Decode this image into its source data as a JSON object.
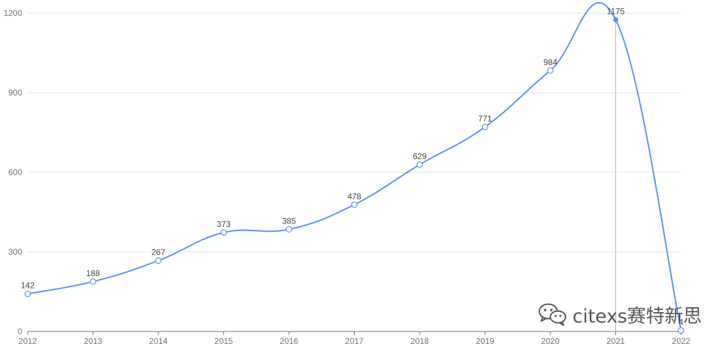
{
  "chart_data": {
    "type": "line",
    "categories": [
      "2012",
      "2013",
      "2014",
      "2015",
      "2016",
      "2017",
      "2018",
      "2019",
      "2020",
      "2021",
      "2022"
    ],
    "values": [
      142,
      188,
      267,
      373,
      385,
      478,
      629,
      771,
      984,
      1175,
      4
    ],
    "ylim": [
      0,
      1200
    ],
    "yticks": [
      0,
      300,
      600,
      900,
      1200
    ],
    "grid": true,
    "smooth": true,
    "highlighted_category": "2021",
    "title": "",
    "xlabel": "",
    "ylabel": ""
  },
  "colors": {
    "line": "#5b8ff9",
    "grid": "#e0e6f1",
    "axis": "#6e7079",
    "highlight_line": "#b5b5b5"
  },
  "watermark": {
    "icon": "wechat-icon",
    "text": "citexs赛特新思"
  }
}
